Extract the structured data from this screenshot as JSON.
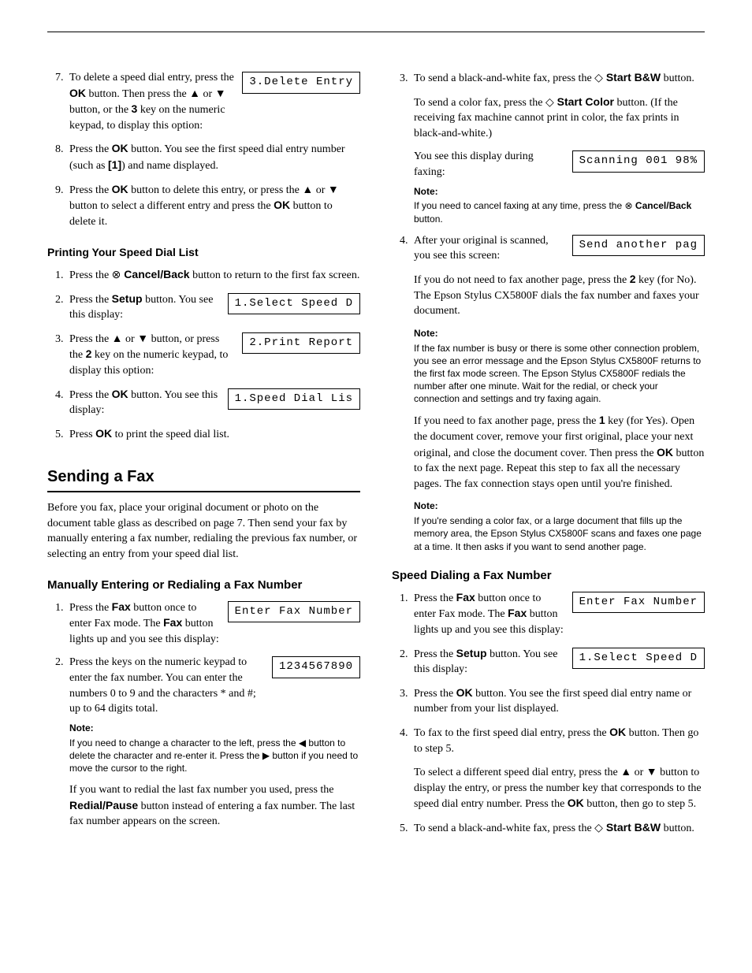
{
  "left": {
    "steps789": {
      "s7": {
        "text_a": "To delete a speed dial entry, press the ",
        "ok1": "OK",
        "text_b": " button. Then press the ",
        "up": "▲",
        "text_c": " or ",
        "down": "▼",
        "text_d": " button, or the ",
        "three": "3",
        "text_e": " key on the numeric keypad, to display this option:",
        "display": "3.Delete Entry"
      },
      "s8": {
        "a": "Press the ",
        "ok": "OK",
        "b": " button. You see the first speed dial entry number (such as ",
        "one": "[1]",
        "c": ") and name displayed."
      },
      "s9": {
        "a": "Press the ",
        "ok1": "OK",
        "b": " button to delete this entry, or press the ",
        "up": "▲",
        "c": " or ",
        "down": "▼",
        "d": " button to select a different entry and press the ",
        "ok2": "OK",
        "e": " button to delete it."
      }
    },
    "print_heading": "Printing Your Speed Dial List",
    "print_steps": {
      "s1": {
        "a": "Press the ",
        "cancel_icon": "⊗",
        "cancel": " Cancel/Back",
        "b": " button to return to the first fax screen."
      },
      "s2": {
        "a": "Press the ",
        "setup": "Setup",
        "b": " button. You see this display:",
        "display": "1.Select Speed D"
      },
      "s3": {
        "a": "Press the ",
        "up": "▲",
        "b": " or ",
        "down": "▼",
        "c": " button, or press the ",
        "two": "2",
        "d": " key on the numeric keypad, to display this option:",
        "display": "2.Print Report"
      },
      "s4": {
        "a": "Press the ",
        "ok": "OK",
        "b": " button. You see this display:",
        "display": "1.Speed Dial Lis"
      },
      "s5": {
        "a": "Press ",
        "ok": "OK",
        "b": " to print the speed dial list."
      }
    },
    "sending_title": "Sending a Fax",
    "sending_intro": "Before you fax, place your original document or photo on the document table glass as described on page 7. Then send your fax by manually entering a fax number, redialing the previous fax number, or selecting an entry from your speed dial list.",
    "manual_title": "Manually Entering or Redialing a Fax Number",
    "manual_steps": {
      "s1": {
        "a": "Press the ",
        "fax": "Fax",
        "b": " button once to enter Fax mode. The ",
        "fax2": "Fax",
        "c": " button lights up and you see this display:",
        "display": "Enter Fax Number"
      },
      "s2": {
        "a": "Press the keys on the numeric keypad to enter the fax number. You can enter the numbers 0 to 9 and the characters * and #; up to 64 digits total.",
        "display": "1234567890"
      }
    },
    "manual_note_label": "Note:",
    "manual_note_text_a": "If you need to change a character to the left, press the ",
    "manual_note_left": "◀",
    "manual_note_text_b": " button to delete the character and re-enter it. Press the ",
    "manual_note_right": "▶",
    "manual_note_text_c": " button if you need to move the cursor to the right.",
    "manual_redial_a": "If you want to redial the last fax number you used, press the ",
    "manual_redial_btn": "Redial/Pause",
    "manual_redial_b": " button instead of entering a fax number. The last fax number appears on the screen."
  },
  "right": {
    "s3": {
      "a": "To send a black-and-white fax, press the ",
      "diamond": "◇",
      "startbw": " Start B&W",
      "b": " button.",
      "color_a": "To send a color fax, press the ",
      "diamond2": "◇",
      "startcolor": " Start Color",
      "color_b": " button. (If the receiving fax machine cannot print in color, the fax prints in black-and-white.)",
      "faxing_a": "You see this display during faxing:",
      "display": "Scanning 001 98%",
      "note_label": "Note:",
      "note_a": "If you need to cancel faxing at any time, press the ",
      "cancel_icon": "⊗",
      "cancel": " Cancel/Back",
      "note_b": " button."
    },
    "s4": {
      "a": "After your original is scanned, you see this screen:",
      "display": "Send another pag",
      "p2_a": "If you do not need to fax another page, press the ",
      "two": "2",
      "p2_b": " key (for No). The Epson Stylus CX5800F dials the fax number and faxes your document.",
      "note_label": "Note:",
      "note_text": "If the fax number is busy or there is some other connection problem, you see an error message and the Epson Stylus CX5800F returns to the first fax mode screen. The Epson Stylus CX5800F redials the number after one minute. Wait for the redial, or check your connection and settings and try faxing again.",
      "p3_a": "If you need to fax another page, press the ",
      "one": "1",
      "p3_b": " key (for Yes). Open the document cover, remove your first original, place your next original, and close the document cover. Then press the ",
      "ok": "OK",
      "p3_c": " button to fax the next page. Repeat this step to fax all the necessary pages. The fax connection stays open until you're finished.",
      "note2_label": "Note:",
      "note2_text": "If you're sending a color fax, or a large document that fills up the memory area, the Epson Stylus CX5800F scans and faxes one page at a time. It then asks if you want to send another page."
    },
    "speed_title": "Speed Dialing a Fax Number",
    "speed_steps": {
      "s1": {
        "a": "Press the ",
        "fax": "Fax",
        "b": " button once to enter Fax mode. The ",
        "fax2": "Fax",
        "c": " button lights up and you see this display:",
        "display": "Enter Fax Number"
      },
      "s2": {
        "a": "Press the ",
        "setup": "Setup",
        "b": " button. You see this display:",
        "display": "1.Select Speed D"
      },
      "s3": {
        "a": "Press the ",
        "ok": "OK",
        "b": " button. You see the first speed dial entry name or number from your list displayed."
      },
      "s4": {
        "a": "To fax to the first speed dial entry, press the ",
        "ok": "OK",
        "b": " button. Then go to step 5.",
        "p2_a": "To select a different speed dial entry, press the ",
        "up": "▲",
        "p2_b": " or ",
        "down": "▼",
        "p2_c": " button to display the entry, or press the number key that corresponds to the speed dial entry number. Press the ",
        "ok2": "OK",
        "p2_d": " button, then go to step 5."
      },
      "s5": {
        "a": "To send a black-and-white fax, press the ",
        "diamond": "◇",
        "startbw": " Start B&W",
        "b": " button."
      }
    }
  }
}
